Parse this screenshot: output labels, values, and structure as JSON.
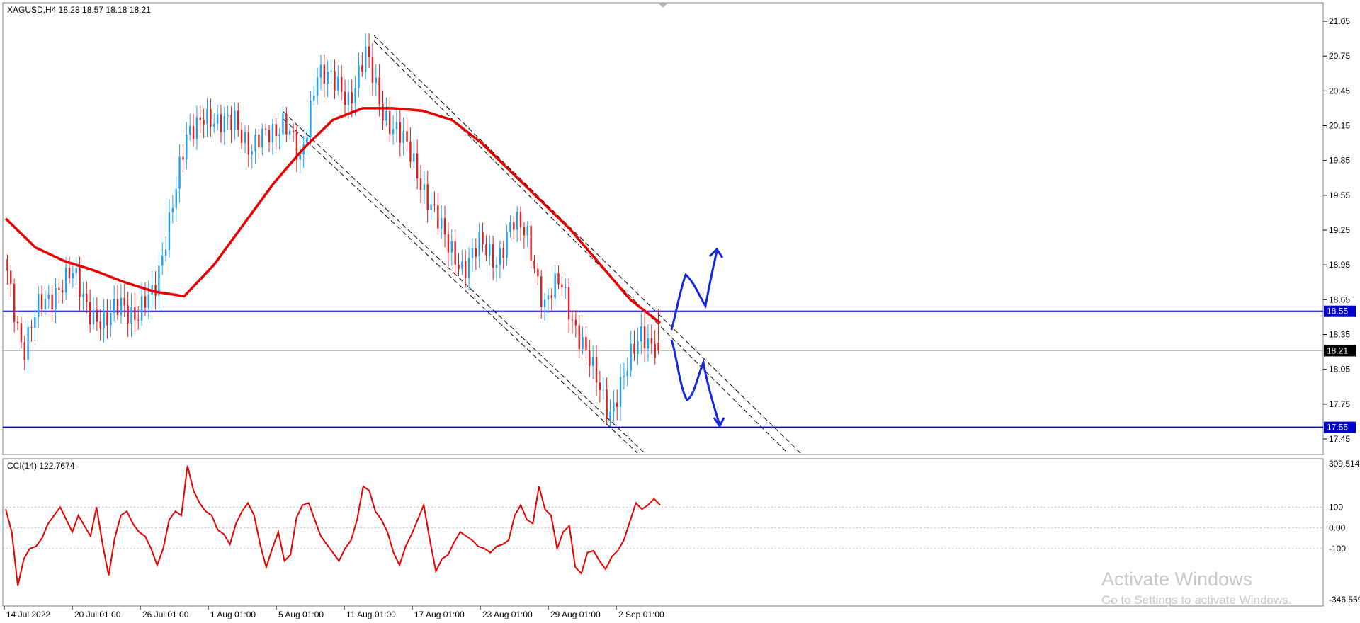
{
  "header": {
    "symbol_text": "XAGUSD,H4  18.28 18.57 18.18 18.21"
  },
  "indicator": {
    "label": "CCI(14) 122.7674"
  },
  "watermark": {
    "title": "Activate Windows",
    "subtitle": "Go to Settings to activate Windows."
  },
  "colors": {
    "bull": "#1ea0f0",
    "bear": "#dc1e1e",
    "ma": "#e60000",
    "cci": "#e60000",
    "level": "#0000c8",
    "arrows": "#1428dc",
    "price_tag_bg": "#000000"
  },
  "chart_data": [
    {
      "type": "candlestick",
      "timeframe": "H4",
      "ylim": [
        17.3,
        21.15
      ],
      "y_ticks": [
        "21.05",
        "20.75",
        "20.45",
        "20.15",
        "19.85",
        "19.55",
        "19.25",
        "18.95",
        "18.65",
        "18.35",
        "18.05",
        "17.75",
        "17.45"
      ],
      "x_ticks": [
        "14 Jul 2022",
        "20 Jul 01:00",
        "26 Jul 01:00",
        "1 Aug 01:00",
        "5 Aug 01:00",
        "11 Aug 01:00",
        "17 Aug 01:00",
        "23 Aug 01:00",
        "29 Aug 01:00",
        "2 Sep 01:00"
      ],
      "last_bar": {
        "open": 18.28,
        "high": 18.57,
        "low": 18.18,
        "close": 18.21
      },
      "key_closes": [
        18.9,
        18.2,
        18.6,
        18.75,
        18.85,
        18.6,
        18.4,
        18.65,
        18.5,
        18.7,
        19.4,
        20.0,
        20.3,
        20.1,
        20.25,
        19.9,
        20.1,
        20.2,
        19.8,
        20.65,
        20.5,
        20.4,
        20.75,
        20.3,
        20.1,
        19.8,
        19.5,
        19.1,
        18.95,
        19.1,
        19.0,
        19.3,
        19.2,
        18.6,
        18.8,
        18.4,
        18.0,
        17.7,
        18.0,
        18.4,
        18.21
      ],
      "moving_average": {
        "color_hint": "red",
        "points": [
          19.35,
          19.1,
          18.98,
          18.9,
          18.8,
          18.72,
          18.68,
          18.95,
          19.3,
          19.65,
          19.95,
          20.2,
          20.3,
          20.3,
          20.28,
          20.2,
          20.0,
          19.75,
          19.5,
          19.25,
          18.95,
          18.65,
          18.45
        ]
      },
      "price_tags": [
        {
          "label": "18.55",
          "value": 18.55,
          "kind": "level"
        },
        {
          "label": "18.21",
          "value": 18.21,
          "kind": "current"
        },
        {
          "label": "17.55",
          "value": 17.55,
          "kind": "level"
        }
      ]
    },
    {
      "type": "line",
      "name": "CCI(14)",
      "ylim": [
        -346.559,
        309.514
      ],
      "y_ticks": [
        "309.514",
        "100",
        "0.00",
        "-100",
        "-346.559"
      ],
      "levels": [
        100,
        0,
        -100
      ],
      "values": [
        90,
        -20,
        -280,
        -150,
        -100,
        -90,
        -50,
        20,
        60,
        100,
        40,
        -20,
        60,
        10,
        -40,
        100,
        -80,
        -230,
        -50,
        60,
        80,
        20,
        -20,
        -40,
        -100,
        -180,
        -100,
        40,
        80,
        60,
        300,
        180,
        120,
        80,
        60,
        -10,
        -30,
        -80,
        20,
        80,
        120,
        60,
        -80,
        -190,
        -100,
        -20,
        -160,
        -130,
        50,
        110,
        120,
        40,
        -40,
        -80,
        -120,
        -160,
        -100,
        -60,
        40,
        200,
        180,
        80,
        40,
        -20,
        -120,
        -180,
        -90,
        -30,
        40,
        110,
        -60,
        -210,
        -150,
        -130,
        -70,
        -20,
        -40,
        -60,
        -90,
        -100,
        -120,
        -90,
        -80,
        -60,
        60,
        110,
        40,
        20,
        200,
        90,
        60,
        -100,
        -20,
        10,
        -190,
        -220,
        -120,
        -110,
        -160,
        -200,
        -140,
        -110,
        -60,
        30,
        120,
        90,
        110,
        140,
        110
      ]
    }
  ]
}
